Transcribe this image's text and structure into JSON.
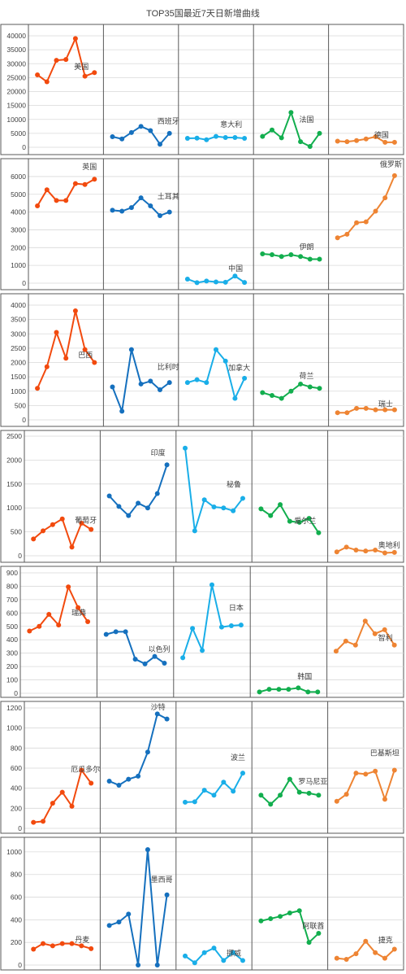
{
  "title": "TOP35国最近7天日新增曲线",
  "colors": {
    "series": [
      "#F24A0E",
      "#1570BE",
      "#19AEE8",
      "#12AE4E",
      "#EE8433"
    ],
    "grid": "#D9D9D9",
    "frame": "#595959",
    "label": "#404040"
  },
  "chart_data": [
    {
      "type": "line",
      "ylim": [
        0,
        40000
      ],
      "yticks": [
        "0",
        "5000",
        "10000",
        "15000",
        "20000",
        "25000",
        "30000",
        "35000",
        "40000"
      ],
      "series": [
        {
          "name": "美国",
          "values": [
            26000,
            23500,
            31200,
            31500,
            39000,
            25500,
            26800
          ]
        },
        {
          "name": "西班牙",
          "values": [
            3800,
            3000,
            5300,
            7500,
            6000,
            1100,
            5000
          ]
        },
        {
          "name": "意大利",
          "values": [
            3200,
            3300,
            2700,
            3900,
            3500,
            3500,
            3200
          ]
        },
        {
          "name": "法国",
          "values": [
            3900,
            6200,
            3400,
            12500,
            2000,
            300,
            5000
          ]
        },
        {
          "name": "德国",
          "values": [
            2200,
            2000,
            2400,
            3000,
            3800,
            1800,
            1800
          ]
        }
      ]
    },
    {
      "type": "line",
      "ylim": [
        0,
        6500
      ],
      "yticks": [
        "0",
        "1000",
        "2000",
        "3000",
        "4000",
        "5000",
        "6000"
      ],
      "series": [
        {
          "name": "英国",
          "values": [
            4350,
            5250,
            4650,
            4650,
            5600,
            5550,
            5850
          ]
        },
        {
          "name": "土耳其",
          "values": [
            4100,
            4050,
            4250,
            4800,
            4350,
            3800,
            4000
          ]
        },
        {
          "name": "中国",
          "values": [
            230,
            30,
            120,
            70,
            50,
            400,
            40
          ]
        },
        {
          "name": "伊朗",
          "values": [
            1650,
            1600,
            1500,
            1600,
            1500,
            1350,
            1350
          ]
        },
        {
          "name": "俄罗斯",
          "values": [
            2550,
            2750,
            3400,
            3450,
            4050,
            4800,
            6050
          ]
        }
      ]
    },
    {
      "type": "line",
      "ylim": [
        0,
        4000
      ],
      "yticks": [
        "0",
        "500",
        "1000",
        "1500",
        "2000",
        "2500",
        "3000",
        "3500",
        "4000"
      ],
      "series": [
        {
          "name": "巴西",
          "values": [
            1100,
            1850,
            3050,
            2150,
            3800,
            2450,
            2000
          ]
        },
        {
          "name": "比利时",
          "values": [
            1150,
            300,
            2450,
            1250,
            1350,
            1050,
            1300
          ]
        },
        {
          "name": "加拿大",
          "values": [
            1300,
            1400,
            1300,
            2450,
            2050,
            750,
            1450
          ]
        },
        {
          "name": "荷兰",
          "values": [
            950,
            850,
            750,
            1000,
            1250,
            1150,
            1100
          ]
        },
        {
          "name": "瑞士",
          "values": [
            250,
            250,
            400,
            400,
            350,
            350,
            350
          ]
        }
      ]
    },
    {
      "type": "line",
      "ylim": [
        0,
        2500
      ],
      "yticks": [
        "0",
        "500",
        "1000",
        "1500",
        "2000",
        "2500"
      ],
      "series": [
        {
          "name": "葡萄牙",
          "values": [
            350,
            520,
            650,
            770,
            180,
            680,
            550
          ]
        },
        {
          "name": "印度",
          "values": [
            1250,
            1030,
            840,
            1100,
            1000,
            1300,
            1900
          ]
        },
        {
          "name": "秘鲁",
          "values": [
            2250,
            520,
            1170,
            1020,
            1000,
            940,
            1200
          ]
        },
        {
          "name": "爱尔兰",
          "values": [
            980,
            840,
            1070,
            720,
            700,
            780,
            480
          ]
        },
        {
          "name": "奥地利",
          "values": [
            80,
            180,
            120,
            100,
            120,
            60,
            70
          ]
        }
      ]
    },
    {
      "type": "line",
      "ylim": [
        0,
        900
      ],
      "yticks": [
        "0",
        "100",
        "200",
        "300",
        "400",
        "500",
        "600",
        "700",
        "800",
        "900"
      ],
      "series": [
        {
          "name": "瑞典",
          "values": [
            465,
            500,
            590,
            510,
            795,
            640,
            535
          ]
        },
        {
          "name": "以色列",
          "values": [
            440,
            460,
            460,
            255,
            220,
            275,
            225
          ]
        },
        {
          "name": "日本",
          "values": [
            265,
            485,
            320,
            810,
            495,
            505,
            510
          ]
        },
        {
          "name": "韩国",
          "values": [
            10,
            30,
            30,
            30,
            40,
            10,
            10
          ]
        },
        {
          "name": "智利",
          "values": [
            315,
            390,
            360,
            540,
            445,
            475,
            360
          ]
        }
      ]
    },
    {
      "type": "line",
      "ylim": [
        0,
        1200
      ],
      "yticks": [
        "0",
        "200",
        "400",
        "600",
        "800",
        "1000",
        "1200"
      ],
      "series": [
        {
          "name": "厄瓜多尔",
          "values": [
            60,
            70,
            250,
            360,
            220,
            580,
            450
          ]
        },
        {
          "name": "沙特",
          "values": [
            470,
            430,
            490,
            520,
            760,
            1140,
            1090
          ]
        },
        {
          "name": "波兰",
          "values": [
            260,
            265,
            380,
            330,
            460,
            370,
            550
          ]
        },
        {
          "name": "罗马尼亚",
          "values": [
            330,
            240,
            330,
            490,
            360,
            350,
            330
          ]
        },
        {
          "name": "巴基斯坦",
          "values": [
            270,
            340,
            550,
            540,
            570,
            290,
            580
          ]
        }
      ]
    },
    {
      "type": "line",
      "ylim": [
        0,
        1100
      ],
      "yticks": [
        "0",
        "200",
        "400",
        "600",
        "800",
        "1000"
      ],
      "series": [
        {
          "name": "丹麦",
          "values": [
            140,
            190,
            170,
            190,
            190,
            170,
            145
          ]
        },
        {
          "name": "墨西哥",
          "values": [
            350,
            380,
            450,
            0,
            1020,
            0,
            620
          ]
        },
        {
          "name": "挪威",
          "values": [
            80,
            20,
            110,
            150,
            40,
            110,
            40
          ]
        },
        {
          "name": "阿联酋",
          "values": [
            390,
            410,
            430,
            460,
            480,
            200,
            280
          ]
        },
        {
          "name": "捷克",
          "values": [
            60,
            50,
            100,
            210,
            110,
            60,
            140
          ]
        }
      ]
    }
  ]
}
